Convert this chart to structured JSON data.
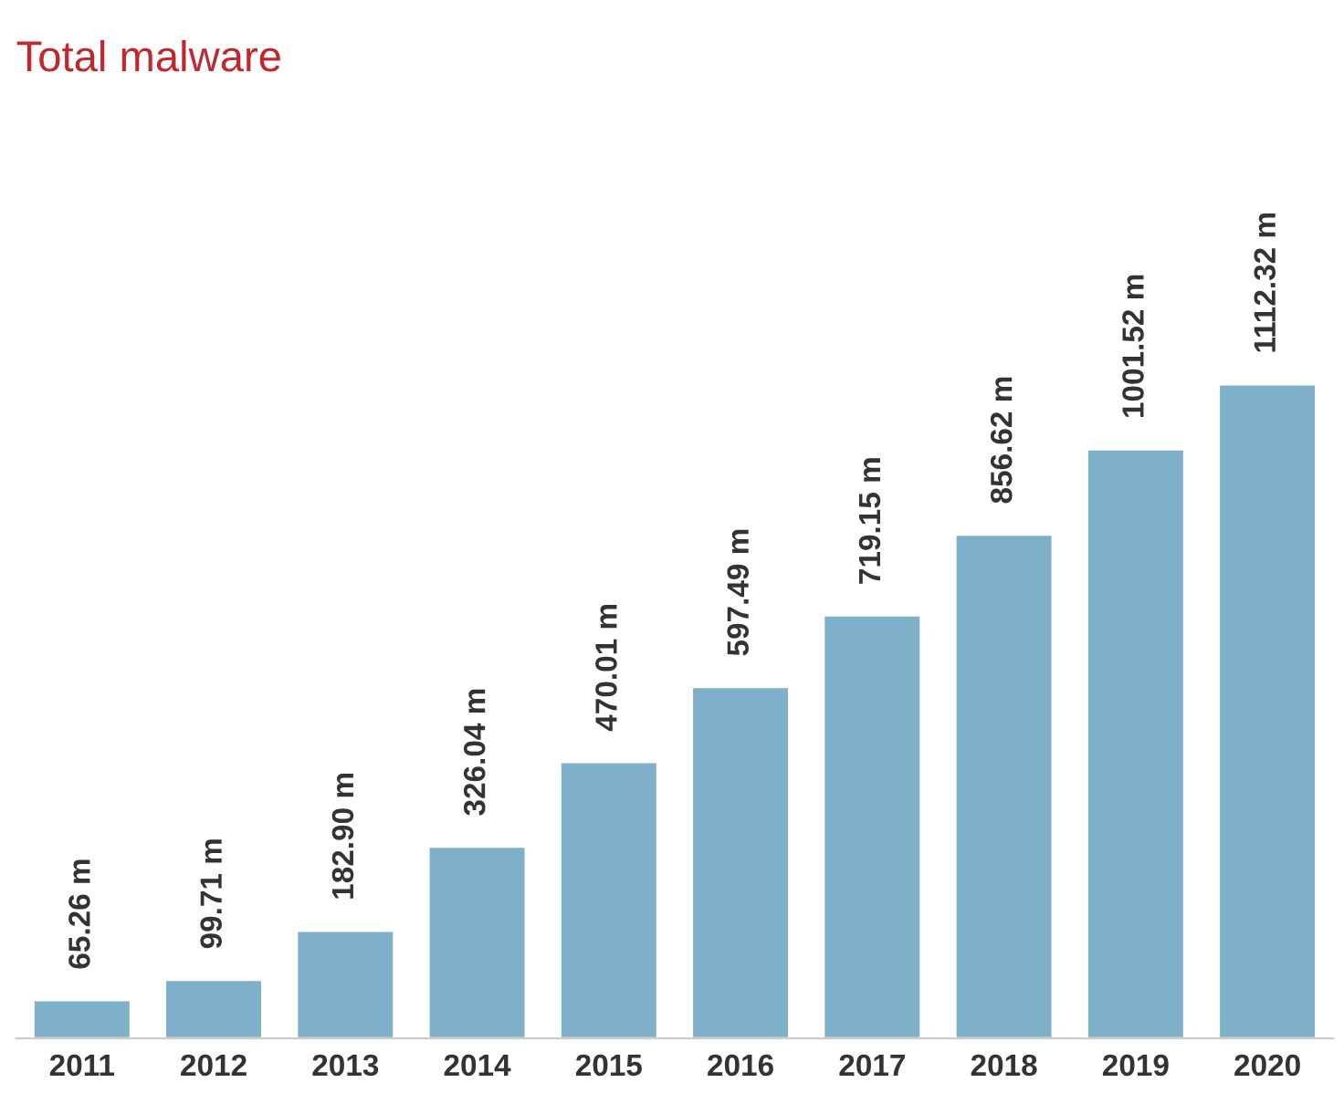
{
  "chart_data": {
    "type": "bar",
    "title": "Total malware",
    "categories": [
      "2011",
      "2012",
      "2013",
      "2014",
      "2015",
      "2016",
      "2017",
      "2018",
      "2019",
      "2020"
    ],
    "values": [
      65.26,
      99.71,
      182.9,
      326.04,
      470.01,
      597.49,
      719.15,
      856.62,
      1001.52,
      1112.32
    ],
    "value_labels": [
      "65.26 m",
      "99.71 m",
      "182.90 m",
      "326.04 m",
      "470.01 m",
      "597.49 m",
      "719.15 m",
      "856.62 m",
      "1001.52 m",
      "1112.32 m"
    ],
    "color": "#7fb0c9",
    "grid": false,
    "legend": false
  }
}
